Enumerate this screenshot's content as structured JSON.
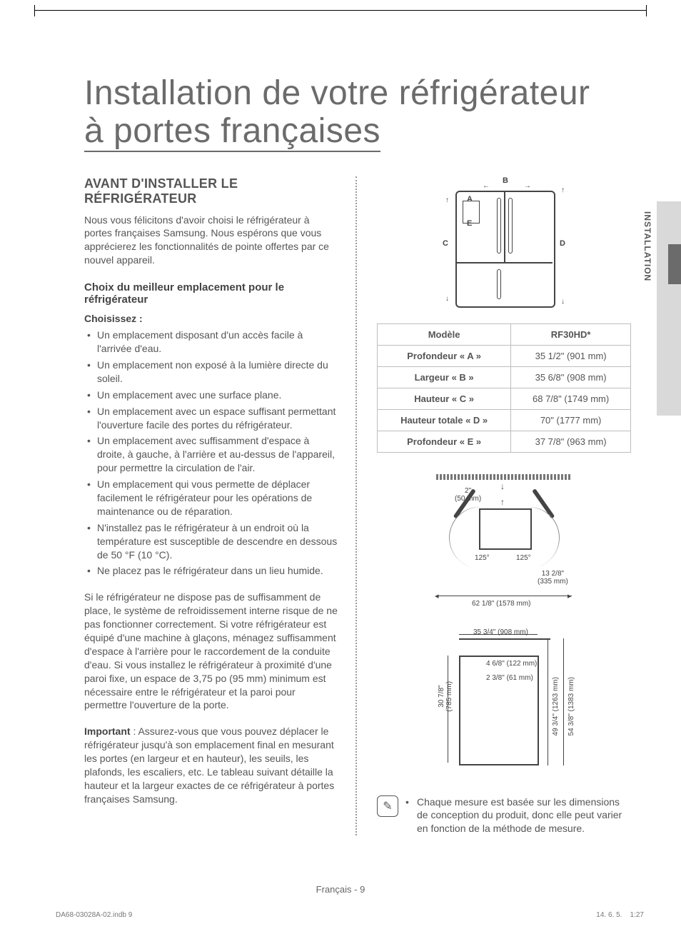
{
  "title_line1": "Installation de votre réfrigérateur",
  "title_line2": "à portes françaises",
  "side_tab_label": "INSTALLATION",
  "left": {
    "h2": "AVANT D'INSTALLER LE RÉFRIGÉRATEUR",
    "intro": "Nous vous félicitons d'avoir choisi le réfrigérateur à portes françaises Samsung. Nous espérons que vous apprécierez les fonctionnalités de pointe offertes par ce nouvel appareil.",
    "h3": "Choix du meilleur emplacement pour le réfrigérateur",
    "h4": "Choisissez :",
    "bullets": [
      "Un emplacement disposant d'un accès facile à l'arrivée d'eau.",
      "Un emplacement non exposé à la lumière directe du soleil.",
      "Un emplacement avec une surface plane.",
      "Un emplacement avec un espace suffisant permettant l'ouverture facile des portes du réfrigérateur.",
      "Un emplacement avec suffisamment d'espace à droite, à gauche, à l'arrière et au-dessus de l'appareil, pour permettre la circulation de l'air.",
      "Un emplacement qui vous permette de déplacer facilement le réfrigérateur pour les opérations de maintenance ou de réparation.",
      "N'installez pas le réfrigérateur à un endroit où la température est susceptible de descendre en dessous de 50 °F (10 °C).",
      "Ne placez pas le réfrigérateur dans un lieu humide."
    ],
    "para1": "Si le réfrigérateur ne dispose pas de suffisamment de place, le système de refroidissement interne risque de ne pas fonctionner correctement. Si votre réfrigérateur est équipé d'une machine à glaçons, ménagez suffisamment d'espace à l'arrière pour le raccordement de la conduite d'eau. Si vous installez le réfrigérateur à proximité d'une paroi fixe, un espace de 3,75 po (95 mm) minimum est nécessaire entre le réfrigérateur et la paroi pour permettre l'ouverture de la porte.",
    "para2_bold": "Important",
    "para2_rest": " : Assurez-vous que vous pouvez déplacer le réfrigérateur jusqu'à son emplacement final en mesurant les portes (en largeur et en hauteur), les seuils, les plafonds, les escaliers, etc. Le tableau suivant détaille la hauteur et la largeur exactes de ce réfrigérateur à portes françaises Samsung."
  },
  "diagram_front": {
    "labels": {
      "A": "A",
      "B": "B",
      "C": "C",
      "D": "D",
      "E": "E"
    }
  },
  "dim_table": {
    "header": [
      "Modèle",
      "RF30HD*"
    ],
    "rows": [
      [
        "Profondeur « A »",
        "35 1/2\" (901 mm)"
      ],
      [
        "Largeur « B »",
        "35 6/8\" (908 mm)"
      ],
      [
        "Hauteur « C »",
        "68 7/8\" (1749 mm)"
      ],
      [
        "Hauteur totale « D »",
        "70\" (1777 mm)"
      ],
      [
        "Profondeur « E »",
        "37 7/8\" (963 mm)"
      ]
    ]
  },
  "topview": {
    "gap_top": "2\"\n(50 mm)",
    "angle_l": "125°",
    "angle_r": "125°",
    "door_swing": "13 2/8\"\n(335 mm)",
    "total_width": "62 1/8\" (1578 mm)"
  },
  "sideview": {
    "width_top": "35 3/4\" (908 mm)",
    "d1": "4 6/8\" (122 mm)",
    "d2": "2 3/8\" (61 mm)",
    "depth_left": "30 7/8\"\n(785 mm)",
    "depth_r1": "49 3/4\" (1263 mm)",
    "depth_r2": "54 3/8\" (1383 mm)"
  },
  "note": {
    "text": "Chaque mesure est basée sur les dimensions de conception du produit, donc elle peut varier en fonction de la méthode de mesure."
  },
  "footer": {
    "center": "Français - 9",
    "left": "DA68-03028A-02.indb   9",
    "right": "14. 6. 5.      1:27"
  },
  "colors": {
    "text": "#555555",
    "heading": "#555555",
    "line": "#444444",
    "tab_gray": "#d9d9d9",
    "tab_dark": "#6b6b6b",
    "table_border": "#bdbdbd"
  }
}
